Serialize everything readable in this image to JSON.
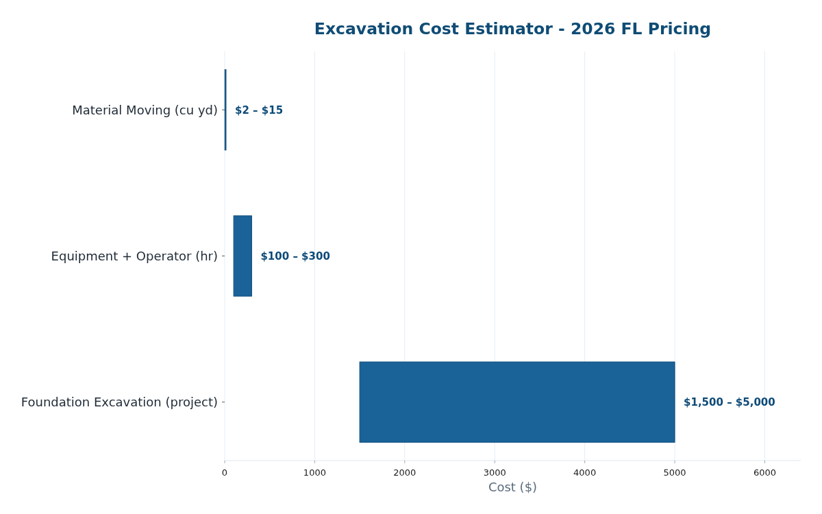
{
  "chart_data": {
    "type": "bar",
    "orientation": "horizontal",
    "title": "Excavation Cost Estimator - 2026 FL Pricing",
    "xlabel": "Cost ($)",
    "categories": [
      "Material Moving (cu yd)",
      "Equipment + Operator (hr)",
      "Foundation Excavation (project)"
    ],
    "base": [
      2,
      100,
      1500
    ],
    "values": [
      13,
      200,
      3500
    ],
    "color": "#1a6399",
    "annotations": [
      {
        "text": "$2 – $15",
        "x": 15,
        "y": "Material Moving (cu yd)"
      },
      {
        "text": "$100 – $300",
        "x": 300,
        "y": "Equipment + Operator (hr)"
      },
      {
        "text": "$1,500 – $5,000",
        "x": 5000,
        "y": "Foundation Excavation (project)"
      }
    ],
    "xlim": [
      0,
      6400
    ],
    "xticks": [
      0,
      1000,
      2000,
      3000,
      4000,
      5000,
      6000
    ],
    "grid": "x"
  }
}
